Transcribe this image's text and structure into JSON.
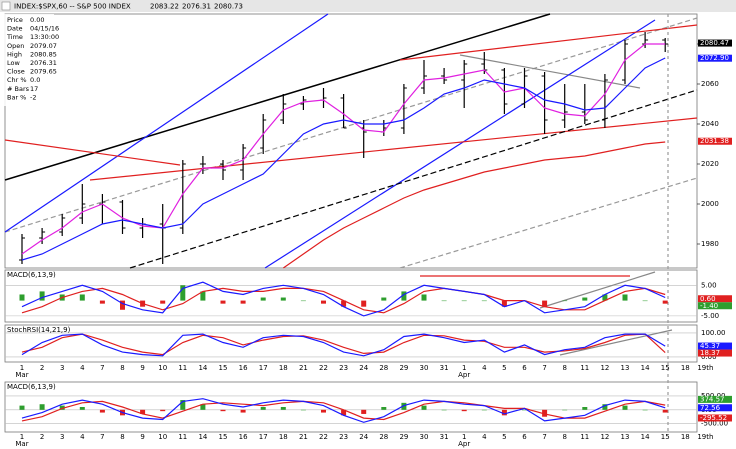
{
  "header": {
    "title": "INDEX:$SPX,60 -- S&P 500 INDEX",
    "quote": [
      "2083.22",
      "2076.31",
      "2080.73"
    ]
  },
  "info": {
    "rows": [
      [
        "Price",
        "0.00"
      ],
      [
        "Date",
        "04/15/16"
      ],
      [
        "Time",
        "13:30:00"
      ],
      [
        "Open",
        "2079.07"
      ],
      [
        "High",
        "2080.85"
      ],
      [
        "Low",
        "2076.31"
      ],
      [
        "Close",
        "2079.65"
      ],
      [
        "Chr %",
        "0.0"
      ],
      [
        "# Bars",
        "17"
      ],
      [
        "Bar %",
        "-2"
      ]
    ]
  },
  "months": [
    "Mar",
    "Apr"
  ],
  "extra_categories": [
    "18",
    "19th"
  ],
  "chart_data": [
    {
      "type": "candlestick",
      "categories": [
        "1",
        "2",
        "3",
        "4",
        "7",
        "8",
        "9",
        "10",
        "11",
        "14",
        "15",
        "16",
        "17",
        "18",
        "21",
        "22",
        "23",
        "24",
        "28",
        "29",
        "30",
        "31",
        "1",
        "4",
        "5",
        "6",
        "7",
        "8",
        "11",
        "12",
        "13",
        "14",
        "15"
      ],
      "open": [
        1972,
        1983,
        1986,
        1993,
        2000,
        2001,
        1988,
        1990,
        1988,
        2020,
        2020,
        2017,
        2028,
        2042,
        2050,
        2052,
        2053,
        2038,
        2036,
        2038,
        2058,
        2064,
        2062,
        2070,
        2067,
        2050,
        2064,
        2042,
        2046,
        2042,
        2062,
        2080,
        2082
      ],
      "high": [
        1985,
        1988,
        1995,
        2010,
        2005,
        2002,
        1993,
        2000,
        2022,
        2024,
        2022,
        2030,
        2045,
        2055,
        2054,
        2058,
        2055,
        2042,
        2042,
        2060,
        2072,
        2068,
        2072,
        2076,
        2068,
        2068,
        2066,
        2060,
        2060,
        2065,
        2082,
        2086,
        2083
      ],
      "low": [
        1970,
        1980,
        1984,
        1990,
        1990,
        1985,
        1983,
        1970,
        1985,
        2015,
        2012,
        2012,
        2025,
        2040,
        2047,
        2048,
        2038,
        2023,
        2034,
        2035,
        2055,
        2060,
        2048,
        2065,
        2045,
        2048,
        2035,
        2038,
        2040,
        2038,
        2060,
        2078,
        2076
      ],
      "close": [
        1983,
        1986,
        1993,
        2000,
        2001,
        1988,
        1990,
        1988,
        2020,
        2020,
        2017,
        2028,
        2042,
        2050,
        2052,
        2053,
        2038,
        2036,
        2038,
        2058,
        2064,
        2062,
        2070,
        2067,
        2050,
        2064,
        2042,
        2046,
        2042,
        2062,
        2080,
        2082,
        2080
      ],
      "series": [
        {
          "color": "#e020e0",
          "values": [
            1975,
            1982,
            1988,
            1996,
            2000,
            1993,
            1989,
            1988,
            2005,
            2018,
            2018,
            2022,
            2035,
            2047,
            2051,
            2052,
            2045,
            2037,
            2036,
            2050,
            2062,
            2063,
            2065,
            2067,
            2056,
            2058,
            2048,
            2045,
            2044,
            2055,
            2072,
            2080,
            2080
          ]
        },
        {
          "color": "#1a1aff",
          "values": [
            1972,
            1975,
            1980,
            1985,
            1990,
            1992,
            1990,
            1988,
            1990,
            2000,
            2005,
            2010,
            2015,
            2025,
            2035,
            2040,
            2042,
            2040,
            2040,
            2042,
            2048,
            2055,
            2058,
            2062,
            2060,
            2058,
            2052,
            2050,
            2047,
            2048,
            2058,
            2068,
            2073
          ]
        },
        {
          "color": "#e02020",
          "values": [
            null,
            null,
            null,
            null,
            null,
            null,
            null,
            null,
            null,
            null,
            null,
            null,
            null,
            1968,
            1975,
            1982,
            1988,
            1993,
            1998,
            2003,
            2007,
            2010,
            2013,
            2016,
            2018,
            2020,
            2022,
            2023,
            2024,
            2026,
            2028,
            2030,
            2031
          ]
        }
      ],
      "ylim": [
        1968,
        2095
      ],
      "yticks": [
        1980,
        2000,
        2020,
        2040,
        2060,
        2080
      ],
      "last_labels": [
        {
          "value": 2080.47,
          "label": "2080.47",
          "color": "#000000"
        },
        {
          "value": 2072.9,
          "label": "2072.90",
          "color": "#1a1aff"
        },
        {
          "value": 2031.38,
          "label": "2031.38",
          "color": "#e02020"
        }
      ]
    },
    {
      "type": "indicator",
      "title": "MACD(6,13,9)",
      "series": [
        {
          "type": "bar",
          "color": "#2e9e2e",
          "negative_color": "#e02020",
          "values": [
            2,
            3,
            2,
            2,
            -1,
            -3,
            -2,
            -1,
            5,
            3,
            -1,
            -1,
            1,
            1,
            0,
            -1,
            -2,
            -2,
            1,
            3,
            2,
            0,
            0,
            0,
            -2,
            0,
            -2,
            0,
            1,
            2,
            2,
            0,
            -1
          ]
        },
        {
          "type": "line",
          "color": "#e02020",
          "values": [
            -4,
            -2,
            1,
            3,
            4,
            2,
            -1,
            -3,
            -1,
            3,
            4,
            3,
            3,
            4,
            4,
            3,
            0,
            -3,
            -4,
            -1,
            3,
            4,
            3,
            2,
            0,
            0,
            -2,
            -3,
            -3,
            0,
            3,
            4,
            2
          ]
        },
        {
          "type": "line",
          "color": "#1a1aff",
          "values": [
            -2,
            1,
            3,
            5,
            3,
            -1,
            -3,
            -4,
            4,
            6,
            3,
            2,
            4,
            5,
            4,
            2,
            -2,
            -5,
            -3,
            2,
            5,
            4,
            3,
            2,
            -2,
            0,
            -4,
            -3,
            -2,
            2,
            5,
            4,
            1
          ]
        }
      ],
      "ylim": [
        -7,
        10
      ],
      "yticks": [
        {
          "value": 5,
          "label": "5.00"
        },
        {
          "value": -5,
          "label": "-5.00"
        }
      ],
      "last_labels": [
        {
          "value": 0.6,
          "label": "0.60",
          "color": "#e02020"
        },
        {
          "value": -1.4,
          "label": "-1.40",
          "color": "#2e9e2e"
        }
      ]
    },
    {
      "type": "indicator",
      "title": "StochRSI(14,21,9)",
      "series": [
        {
          "type": "line",
          "color": "#e02020",
          "values": [
            20,
            40,
            80,
            95,
            70,
            40,
            20,
            10,
            60,
            90,
            80,
            50,
            70,
            85,
            88,
            70,
            40,
            15,
            20,
            60,
            90,
            88,
            70,
            65,
            40,
            40,
            20,
            25,
            35,
            60,
            90,
            95,
            18
          ]
        },
        {
          "type": "line",
          "color": "#1a1aff",
          "values": [
            10,
            60,
            90,
            95,
            50,
            20,
            10,
            5,
            90,
            95,
            60,
            40,
            80,
            90,
            85,
            60,
            20,
            5,
            30,
            85,
            95,
            80,
            60,
            70,
            20,
            50,
            10,
            30,
            40,
            80,
            95,
            95,
            45
          ]
        }
      ],
      "ylim": [
        -21,
        133
      ],
      "yticks": [
        {
          "value": 100,
          "label": "100.00"
        },
        {
          "value": 0,
          "label": "0.00"
        }
      ],
      "last_labels": [
        {
          "value": 45.37,
          "label": "45.37",
          "color": "#1a1aff"
        },
        {
          "value": 18.37,
          "label": "18.37",
          "color": "#e02020"
        }
      ]
    },
    {
      "type": "indicator",
      "title": "MACD(6,13,9)",
      "series": [
        {
          "type": "bar",
          "color": "#2e9e2e",
          "negative_color": "#e02020",
          "values": [
            150,
            200,
            150,
            100,
            -100,
            -200,
            -150,
            -50,
            350,
            200,
            -50,
            -100,
            100,
            100,
            0,
            -100,
            -200,
            -150,
            100,
            250,
            150,
            0,
            -50,
            0,
            -200,
            0,
            -250,
            0,
            100,
            200,
            150,
            0,
            -100
          ]
        },
        {
          "type": "line",
          "color": "#e02020",
          "values": [
            -400,
            -250,
            50,
            250,
            300,
            100,
            -150,
            -300,
            -50,
            200,
            250,
            200,
            150,
            250,
            300,
            250,
            0,
            -300,
            -350,
            -100,
            200,
            300,
            250,
            150,
            50,
            50,
            -150,
            -300,
            -300,
            -50,
            200,
            300,
            170
          ]
        },
        {
          "type": "line",
          "color": "#1a1aff",
          "values": [
            -300,
            -100,
            200,
            350,
            200,
            -100,
            -300,
            -350,
            300,
            400,
            200,
            100,
            250,
            350,
            300,
            150,
            -200,
            -450,
            -250,
            150,
            350,
            300,
            200,
            150,
            -150,
            50,
            -400,
            -300,
            -200,
            150,
            350,
            300,
            70
          ]
        }
      ],
      "ylim": [
        -800,
        1000
      ],
      "yticks": [
        {
          "value": 500,
          "label": "500.00"
        },
        {
          "value": 0,
          "label": "0.00"
        },
        {
          "value": -500,
          "label": "-500.00"
        }
      ],
      "last_labels": [
        {
          "value": 374.57,
          "label": "374.57",
          "color": "#2e9e2e"
        },
        {
          "value": 72.56,
          "label": "72.56",
          "color": "#1a1aff"
        },
        {
          "value": -295.52,
          "label": "-295.52",
          "color": "#e02020"
        }
      ]
    }
  ]
}
